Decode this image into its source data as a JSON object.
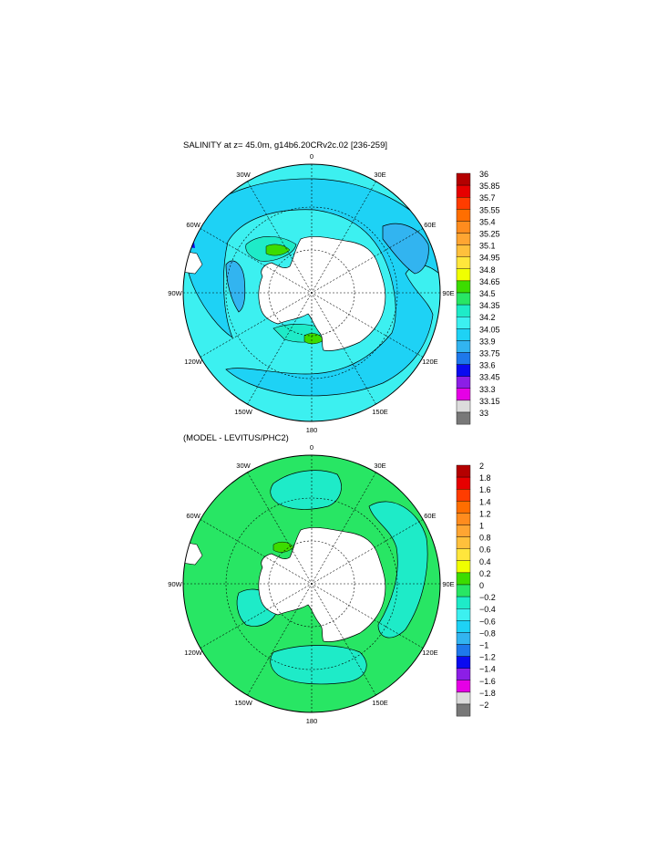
{
  "panel_top": {
    "title": "SALINITY at z=  45.0m, g14b6.20CRv2c.02 [236-259]",
    "longitude_labels": [
      "0",
      "30E",
      "60E",
      "90E",
      "120E",
      "150E",
      "180",
      "150W",
      "120W",
      "90W",
      "60W",
      "30W"
    ],
    "colorbar": {
      "labels": [
        "36",
        "35.85",
        "35.7",
        "35.55",
        "35.4",
        "35.25",
        "35.1",
        "34.95",
        "34.8",
        "34.65",
        "34.5",
        "34.35",
        "34.2",
        "34.05",
        "33.9",
        "33.75",
        "33.6",
        "33.45",
        "33.3",
        "33.15",
        "33"
      ],
      "colors": [
        "#b40000",
        "#e60000",
        "#ff3c00",
        "#ff6e00",
        "#ff8c1e",
        "#ffa532",
        "#ffc03c",
        "#ffe63c",
        "#f0ff00",
        "#3cdc00",
        "#28e664",
        "#1eebc8",
        "#3cf0f0",
        "#1ed2f5",
        "#32b4f0",
        "#1e78eb",
        "#0a0af0",
        "#8c1ee6",
        "#e600e6",
        "#dcdcdc",
        "#787878"
      ]
    }
  },
  "panel_bottom": {
    "title": "(MODEL - LEVITUS/PHC2)",
    "longitude_labels": [
      "0",
      "30E",
      "60E",
      "90E",
      "120E",
      "150E",
      "180",
      "150W",
      "120W",
      "90W",
      "60W",
      "30W"
    ],
    "colorbar": {
      "labels": [
        "2",
        "1.8",
        "1.6",
        "1.4",
        "1.2",
        "1",
        "0.8",
        "0.6",
        "0.4",
        "0.2",
        "0",
        "−0.2",
        "−0.4",
        "−0.6",
        "−0.8",
        "−1",
        "−1.2",
        "−1.4",
        "−1.6",
        "−1.8",
        "−2"
      ],
      "colors": [
        "#b40000",
        "#e60000",
        "#ff3c00",
        "#ff6e00",
        "#ff8c1e",
        "#ffa532",
        "#ffc03c",
        "#ffe63c",
        "#f0ff00",
        "#3cdc00",
        "#28e664",
        "#1eebc8",
        "#3cf0f0",
        "#1ed2f5",
        "#32b4f0",
        "#1e78eb",
        "#0a0af0",
        "#8c1ee6",
        "#e600e6",
        "#dcdcdc",
        "#787878"
      ]
    }
  },
  "fill_colors": {
    "ocean_top": "#3cf0f0",
    "fresh_band_top": "#1ed2f5",
    "fresher_top": "#32b4f0",
    "salty_patch_top": "#1eebc8",
    "green_patch": "#3cdc00",
    "ocean_bottom": "#28e664",
    "negative_bottom": "#1eebc8",
    "land": "#ffffff"
  }
}
